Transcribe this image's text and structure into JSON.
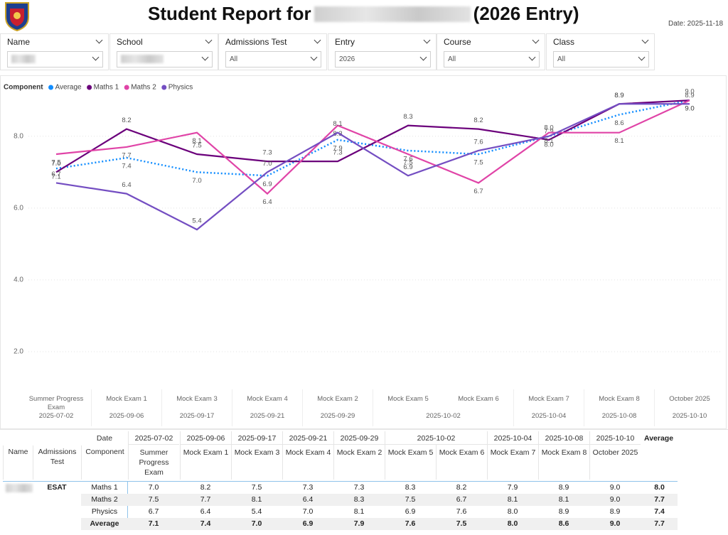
{
  "header": {
    "title_prefix": "Student Report for",
    "title_suffix": "(2026 Entry)",
    "date": "Date: 2025-11-18"
  },
  "filters": [
    {
      "label": "Name"
    },
    {
      "label": "School"
    },
    {
      "label": "Admissions Test",
      "value": "All"
    },
    {
      "label": "Entry",
      "value": "2026"
    },
    {
      "label": "Course",
      "value": "All"
    },
    {
      "label": "Class",
      "value": "All"
    }
  ],
  "chart_data": {
    "type": "line",
    "legend_title": "Component",
    "categories": [
      "Summer Progress Exam",
      "Mock Exam 1",
      "Mock Exam 3",
      "Mock Exam 4",
      "Mock Exam 2",
      "Mock Exam 5",
      "Mock Exam 6",
      "Mock Exam 7",
      "Mock Exam 8",
      "October 2025"
    ],
    "x_dates": [
      "2025-07-02",
      "2025-09-06",
      "2025-09-17",
      "2025-09-21",
      "2025-09-29",
      "2025-10-02",
      null,
      "2025-10-04",
      "2025-10-08",
      "2025-10-10"
    ],
    "ylim": [
      1,
      9.4
    ],
    "yticks": [
      {
        "value": 2,
        "label": "2.0"
      },
      {
        "value": 4,
        "label": "4.0"
      },
      {
        "value": 6,
        "label": "6.0"
      },
      {
        "value": 8,
        "label": "8.0"
      }
    ],
    "grid": true,
    "series": [
      {
        "name": "Average",
        "color": "#118DFF",
        "line_style": "dotted",
        "values": [
          7.1,
          7.4,
          7.0,
          6.9,
          7.9,
          7.6,
          7.5,
          8.0,
          8.6,
          9.0
        ],
        "value_labels": [
          "7.1",
          "7.4",
          "7.0",
          "6.9",
          "7.9",
          "7.6",
          "7.5",
          "8.0",
          "8.6",
          "9.0"
        ]
      },
      {
        "name": "Maths 1",
        "color": "#6B007B",
        "line_style": "solid",
        "values": [
          7.0,
          8.2,
          7.5,
          7.3,
          7.3,
          8.3,
          8.2,
          7.9,
          8.9,
          9.0
        ],
        "value_labels": [
          "7.0",
          "8.2",
          "7.5",
          "7.3",
          "7.3",
          "8.3",
          "8.2",
          "7.9",
          "8.9",
          "9.0"
        ]
      },
      {
        "name": "Maths 2",
        "color": "#E044A7",
        "line_style": "solid",
        "values": [
          7.5,
          7.7,
          8.1,
          6.4,
          8.3,
          7.5,
          6.7,
          8.1,
          8.1,
          9.0
        ],
        "value_labels": [
          "7.5",
          "7.7",
          "8.1",
          "6.4",
          "8.3",
          "7.5",
          "6.7",
          "8.1",
          "8.1",
          "9.0"
        ]
      },
      {
        "name": "Physics",
        "color": "#744EC2",
        "line_style": "solid",
        "values": [
          6.7,
          6.4,
          5.4,
          7.0,
          8.1,
          6.9,
          7.6,
          8.0,
          8.9,
          8.9
        ],
        "value_labels": [
          "6.7",
          "6.4",
          "5.4",
          "7.0",
          "8.1",
          "6.9",
          "7.6",
          "8.0",
          "8.9",
          "8.9"
        ]
      }
    ]
  },
  "table": {
    "date_header": "Date",
    "column_headers": [
      "Name",
      "Admissions Test",
      "Component"
    ],
    "average_header": "Average",
    "admissions_test": "ESAT",
    "rows": [
      {
        "component": "Maths 1",
        "cells": [
          "7.0",
          "8.2",
          "7.5",
          "7.3",
          "7.3",
          "8.3",
          "8.2",
          "7.9",
          "8.9",
          "9.0"
        ],
        "average": "8.0"
      },
      {
        "component": "Maths 2",
        "cells": [
          "7.5",
          "7.7",
          "8.1",
          "6.4",
          "8.3",
          "7.5",
          "6.7",
          "8.1",
          "8.1",
          "9.0"
        ],
        "average": "7.7"
      },
      {
        "component": "Physics",
        "cells": [
          "6.7",
          "6.4",
          "5.4",
          "7.0",
          "8.1",
          "6.9",
          "7.6",
          "8.0",
          "8.9",
          "8.9"
        ],
        "average": "7.4"
      },
      {
        "component": "Average",
        "cells": [
          "7.1",
          "7.4",
          "7.0",
          "6.9",
          "7.9",
          "7.6",
          "7.5",
          "8.0",
          "8.6",
          "9.0"
        ],
        "average": "7.7",
        "bold": true
      }
    ]
  }
}
